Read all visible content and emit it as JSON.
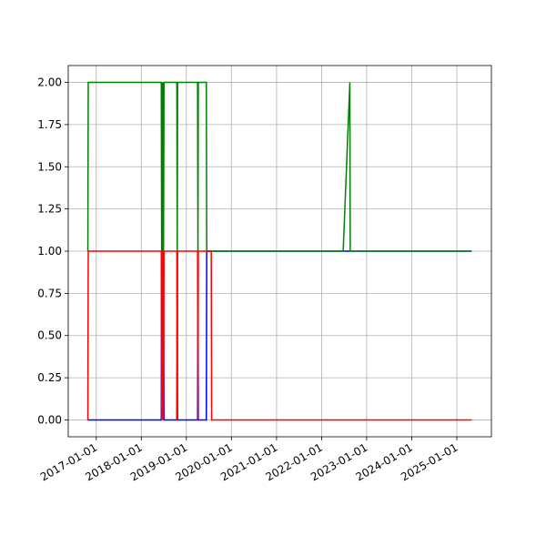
{
  "chart_data": {
    "type": "line",
    "x": [
      "2016-10-25",
      "2016-10-28",
      "2018-06-12",
      "2018-06-15",
      "2018-06-18",
      "2018-06-22",
      "2018-06-26",
      "2018-06-30",
      "2018-07-04",
      "2018-10-16",
      "2018-10-19",
      "2018-10-22",
      "2019-04-02",
      "2019-04-05",
      "2019-04-08",
      "2019-06-12",
      "2019-06-15",
      "2019-07-22",
      "2019-07-25",
      "2022-06-25",
      "2022-08-18",
      "2022-08-21",
      "2025-05-01"
    ],
    "series": [
      {
        "color": "#0000ff",
        "values": [
          0,
          0,
          0,
          1,
          0,
          1,
          0,
          1,
          0,
          0,
          1,
          0,
          0,
          1,
          0,
          0,
          1,
          1,
          1,
          1,
          1,
          1,
          1
        ]
      },
      {
        "color": "#008000",
        "values": [
          1,
          2,
          2,
          1,
          2,
          1,
          2,
          1,
          2,
          2,
          1,
          2,
          2,
          1,
          2,
          2,
          1,
          1,
          1,
          1,
          2,
          1,
          1
        ]
      },
      {
        "color": "#ff0000",
        "values": [
          0,
          1,
          1,
          0,
          1,
          0,
          1,
          0,
          1,
          1,
          0,
          1,
          1,
          0,
          1,
          1,
          1,
          1,
          0,
          0,
          0,
          0,
          0
        ]
      }
    ],
    "xlim": [
      "2016-05-19",
      "2025-10-08"
    ],
    "xticks": [
      "2017-01-01",
      "2018-01-01",
      "2019-01-01",
      "2020-01-01",
      "2021-01-01",
      "2022-01-01",
      "2023-01-01",
      "2024-01-01",
      "2025-01-01"
    ],
    "ylim": [
      -0.1,
      2.1
    ],
    "yticks": [
      {
        "value": 0,
        "label": "0.00"
      },
      {
        "value": 0.25,
        "label": "0.25"
      },
      {
        "value": 0.5,
        "label": "0.50"
      },
      {
        "value": 0.75,
        "label": "0.75"
      },
      {
        "value": 1,
        "label": "1.00"
      },
      {
        "value": 1.25,
        "label": "1.25"
      },
      {
        "value": 1.5,
        "label": "1.50"
      },
      {
        "value": 1.75,
        "label": "1.75"
      },
      {
        "value": 2,
        "label": "2.00"
      }
    ],
    "grid": true
  }
}
